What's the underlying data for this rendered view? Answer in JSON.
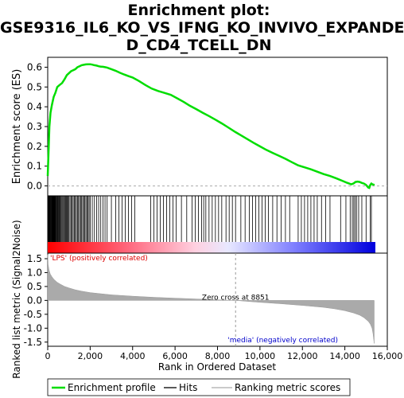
{
  "title_lines": [
    "Enrichment plot:",
    "GSE9316_IL6_KO_VS_IFNG_KO_INVIVO_EXPANDE",
    "D_CD4_TCELL_DN"
  ],
  "chart_data": {
    "type": "line",
    "es_panel": {
      "ylabel": "Enrichment score (ES)",
      "ylim": [
        -0.05,
        0.65
      ],
      "yticks": [
        0.0,
        0.1,
        0.2,
        0.3,
        0.4,
        0.5,
        0.6
      ],
      "ytick_labels": [
        "0.0",
        "0.1",
        "0.2",
        "0.3",
        "0.4",
        "0.5",
        "0.6"
      ],
      "series": [
        {
          "name": "Enrichment profile",
          "color": "#00dd00",
          "x": [
            0,
            40,
            80,
            130,
            200,
            280,
            360,
            450,
            560,
            680,
            800,
            900,
            1000,
            1100,
            1200,
            1300,
            1400,
            1500,
            1600,
            1700,
            1800,
            1900,
            2000,
            2100,
            2200,
            2300,
            2400,
            2500,
            2600,
            2700,
            2800,
            3000,
            3200,
            3400,
            3600,
            3800,
            4000,
            4300,
            4600,
            4900,
            5200,
            5500,
            5800,
            6100,
            6400,
            6700,
            7000,
            7300,
            7600,
            7900,
            8200,
            8500,
            8851,
            9100,
            9400,
            9700,
            10000,
            10300,
            10600,
            10900,
            11200,
            11500,
            11800,
            12100,
            12400,
            12700,
            13000,
            13300,
            13600,
            13900,
            14100,
            14300,
            14400,
            14500,
            14600,
            14700,
            14800,
            14900,
            15000,
            15100,
            15150,
            15200,
            15250,
            15300,
            15400
          ],
          "y": [
            0.05,
            0.18,
            0.3,
            0.37,
            0.41,
            0.45,
            0.47,
            0.5,
            0.51,
            0.52,
            0.54,
            0.56,
            0.57,
            0.58,
            0.585,
            0.59,
            0.6,
            0.605,
            0.61,
            0.612,
            0.614,
            0.615,
            0.615,
            0.613,
            0.61,
            0.608,
            0.605,
            0.603,
            0.602,
            0.6,
            0.598,
            0.59,
            0.582,
            0.572,
            0.563,
            0.555,
            0.548,
            0.53,
            0.51,
            0.492,
            0.48,
            0.47,
            0.46,
            0.443,
            0.425,
            0.405,
            0.388,
            0.37,
            0.353,
            0.335,
            0.316,
            0.296,
            0.272,
            0.256,
            0.237,
            0.218,
            0.2,
            0.182,
            0.167,
            0.152,
            0.137,
            0.12,
            0.104,
            0.094,
            0.084,
            0.072,
            0.06,
            0.05,
            0.038,
            0.025,
            0.016,
            0.008,
            0.012,
            0.02,
            0.022,
            0.02,
            0.015,
            0.012,
            0.005,
            -0.008,
            -0.01,
            0.005,
            0.012,
            0.008,
            0.005
          ]
        }
      ]
    },
    "hits_panel": {
      "series": [
        {
          "name": "Hits",
          "color": "#000000",
          "positions": [
            10,
            30,
            50,
            70,
            90,
            110,
            130,
            150,
            170,
            190,
            210,
            230,
            250,
            270,
            290,
            310,
            330,
            350,
            370,
            390,
            420,
            450,
            480,
            510,
            540,
            570,
            600,
            640,
            680,
            720,
            760,
            800,
            840,
            880,
            920,
            960,
            1000,
            1050,
            1100,
            1150,
            1200,
            1250,
            1300,
            1350,
            1400,
            1450,
            1500,
            1550,
            1600,
            1650,
            1700,
            1750,
            1800,
            1850,
            1900,
            1950,
            2000,
            2100,
            2200,
            2300,
            2400,
            2500,
            2600,
            2700,
            2800,
            3000,
            3200,
            3350,
            3500,
            3650,
            3800,
            3950,
            4100,
            4850,
            5000,
            5150,
            5300,
            5450,
            5600,
            5750,
            5900,
            6050,
            6300,
            6550,
            6800,
            6950,
            7100,
            7250,
            7350,
            7450,
            7600,
            7750,
            7900,
            8050,
            8200,
            8400,
            8550,
            8700,
            8850,
            9100,
            9300,
            9500,
            9650,
            9800,
            9950,
            10100,
            10250,
            10400,
            10600,
            10800,
            11000,
            11200,
            11400,
            11800,
            11950,
            12100,
            12250,
            12400,
            12550,
            12700,
            12900,
            13100,
            13300,
            13800,
            14050,
            14250,
            14350,
            14420,
            14480,
            14550,
            14650,
            14800,
            15000,
            15200,
            15250
          ]
        }
      ]
    },
    "metric_panel": {
      "ylabel": "Ranked list metric (Signal2Noise)",
      "xlabel": "Rank in Ordered Dataset",
      "ylim": [
        -1.65,
        1.7
      ],
      "yticks": [
        -1.5,
        -1.0,
        -0.5,
        0.0,
        0.5,
        1.0,
        1.5
      ],
      "ytick_labels": [
        "-1.5",
        "-1.0",
        "-0.5",
        "0.0",
        "0.5",
        "1.0",
        "1.5"
      ],
      "xlim": [
        0,
        16000
      ],
      "xticks": [
        0,
        2000,
        4000,
        6000,
        8000,
        10000,
        12000,
        14000,
        16000
      ],
      "xtick_labels": [
        "0",
        "2,000",
        "4,000",
        "6,000",
        "8,000",
        "10,000",
        "12,000",
        "14,000",
        "16,000"
      ],
      "series": [
        {
          "name": "Ranking metric scores",
          "color": "#aaaaaa",
          "x": [
            0,
            20,
            60,
            120,
            200,
            300,
            450,
            600,
            800,
            1000,
            1300,
            1600,
            2000,
            2500,
            3000,
            4000,
            5000,
            6000,
            7000,
            8000,
            8851,
            9500,
            10000,
            11000,
            12000,
            13000,
            13500,
            14000,
            14400,
            14700,
            14900,
            15100,
            15200,
            15280,
            15330,
            15360,
            15380
          ],
          "y": [
            1.65,
            1.3,
            1.1,
            0.95,
            0.85,
            0.75,
            0.65,
            0.58,
            0.5,
            0.45,
            0.38,
            0.33,
            0.28,
            0.24,
            0.2,
            0.15,
            0.11,
            0.08,
            0.05,
            0.02,
            0.0,
            -0.04,
            -0.07,
            -0.12,
            -0.18,
            -0.25,
            -0.3,
            -0.37,
            -0.45,
            -0.53,
            -0.62,
            -0.75,
            -0.85,
            -1.0,
            -1.2,
            -1.4,
            -1.55
          ]
        }
      ],
      "zero_cross": 8851,
      "zero_cross_label": "Zero cross at 8851",
      "positive_label": "'LPS' (positively correlated)",
      "negative_label": "'media' (negatively correlated)"
    },
    "legend": {
      "placement": "bottom",
      "items": [
        {
          "label": "Enrichment profile",
          "color": "#00dd00"
        },
        {
          "label": "Hits",
          "color": "#000000"
        },
        {
          "label": "Ranking metric scores",
          "color": "#aaaaaa"
        }
      ]
    }
  }
}
